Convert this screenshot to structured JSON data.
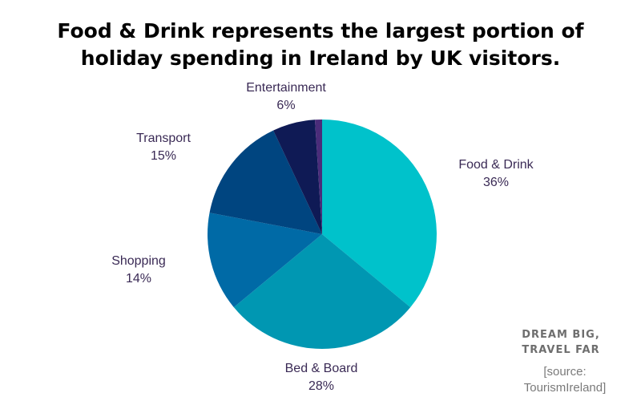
{
  "chart_data": {
    "type": "pie",
    "title_lines": [
      "Food & Drink represents the largest portion of",
      "holiday spending in Ireland by UK visitors."
    ],
    "slices": [
      {
        "label": "Food & Drink",
        "value": 36,
        "value_label": "36%",
        "color": "#00c2cb"
      },
      {
        "label": "Bed & Board",
        "value": 28,
        "value_label": "28%",
        "color": "#0097b2"
      },
      {
        "label": "Shopping",
        "value": 14,
        "value_label": "14%",
        "color": "#006aa6"
      },
      {
        "label": "Transport",
        "value": 15,
        "value_label": "15%",
        "color": "#004580"
      },
      {
        "label": "Entertainment",
        "value": 6,
        "value_label": "6%",
        "color": "#0f1a55"
      },
      {
        "label": "",
        "value": 1,
        "value_label": "",
        "color": "#4a2c7a"
      }
    ],
    "start_angle_deg": 0,
    "direction": "clockwise",
    "legend": "none"
  },
  "branding": {
    "line1": "DREAM BIG,",
    "line2": "TRAVEL FAR"
  },
  "source": {
    "line1": "[source:",
    "line2": "TourismIreland]"
  }
}
